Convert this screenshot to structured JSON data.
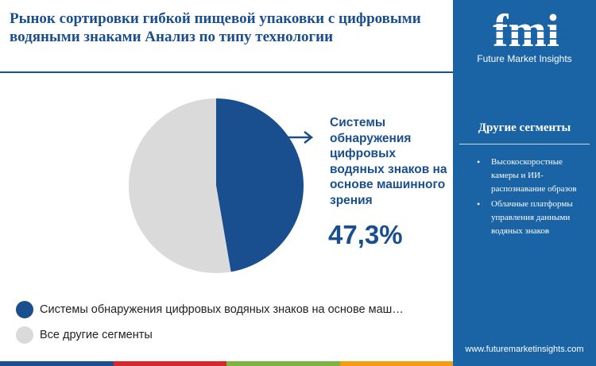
{
  "header": {
    "title": "Рынок сортировки гибкой пищевой упаковки с цифровыми водяными знаками Анализ по типу технологии"
  },
  "chart_data": {
    "type": "pie",
    "title": "Рынок сортировки гибкой пищевой упаковки с цифровыми водяными знаками Анализ по типу технологии",
    "slices": [
      {
        "label": "Системы обнаружения цифровых водяных знаков на основе маш…",
        "value": 47.3,
        "color": "#1a4f8f"
      },
      {
        "label": "Все другие сегменты",
        "value": 52.7,
        "color": "#dadada"
      }
    ],
    "callout": {
      "label": "Системы обнаружения цифровых водяных знаков на основе машинного зрения",
      "value_text": "47,3%"
    },
    "legend_position": "bottom-left"
  },
  "sidebar": {
    "logo_text": "fmi",
    "logo_subtitle": "Future Market Insights",
    "heading": "Другие сегменты",
    "items": [
      "Высокоскоростные камеры и ИИ-распознавание образов",
      "Облачные платформы управления данными водяных знаков"
    ],
    "url": "www.futuremarketinsights.com"
  },
  "colors": {
    "primary": "#1a4f8f",
    "sidebar": "#1a63a4",
    "secondary_slice": "#dadada",
    "bar": [
      "#1a4f8f",
      "#d9262b",
      "#7cb342",
      "#f39c12"
    ]
  }
}
